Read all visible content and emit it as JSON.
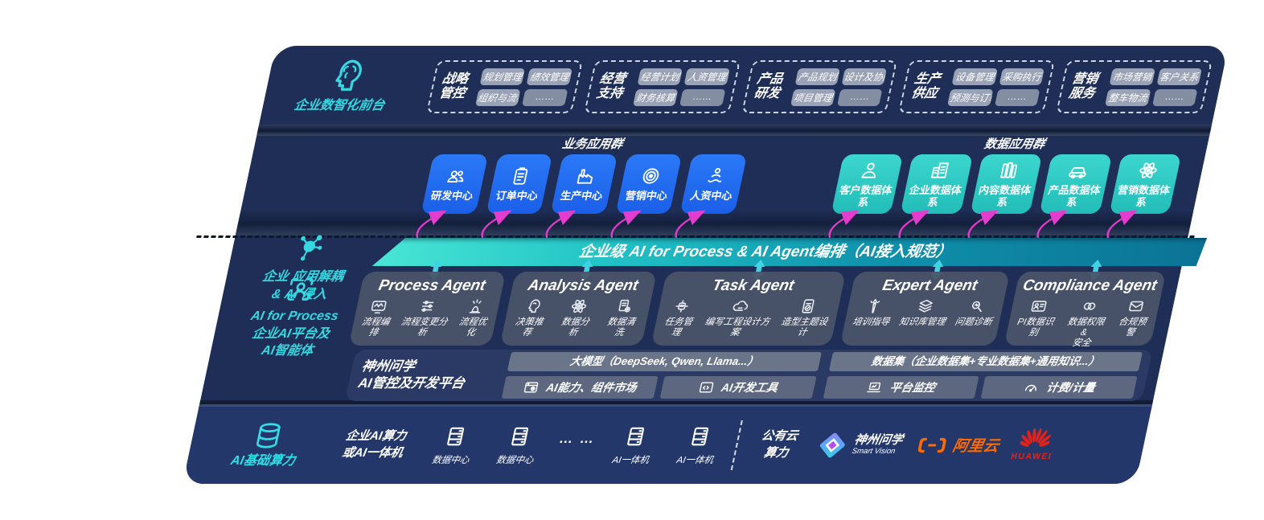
{
  "front": {
    "section_label": "企业数智化前台",
    "icon": "brain-head",
    "groups": [
      {
        "title": "战略管控",
        "items": [
          "规划管理",
          "绩效管理",
          "组织与流程",
          "……"
        ]
      },
      {
        "title": "经营支持",
        "items": [
          "经营计划",
          "人资管理",
          "财务核算",
          "……"
        ]
      },
      {
        "title": "产品研发",
        "items": [
          "产品规划",
          "设计及协同",
          "项目管理",
          "……"
        ]
      },
      {
        "title": "生产供应",
        "items": [
          "设备管理",
          "采购执行",
          "预测与订单",
          "……"
        ]
      },
      {
        "title": "营销服务",
        "items": [
          "市场营销",
          "客户关系",
          "整车物流",
          "……"
        ]
      }
    ]
  },
  "apps": {
    "section_label": "企业 应用解耦\n& AI 侵入",
    "icon": "molecule",
    "business_title": "业务应用群",
    "business": [
      {
        "label": "研发中心",
        "icon": "people"
      },
      {
        "label": "订单中心",
        "icon": "clipboard"
      },
      {
        "label": "生产中心",
        "icon": "factory"
      },
      {
        "label": "营销中心",
        "icon": "target"
      },
      {
        "label": "人资中心",
        "icon": "person-wave"
      }
    ],
    "data_title": "数据应用群",
    "data": [
      {
        "label": "客户数据体系",
        "icon": "person"
      },
      {
        "label": "企业数据体系",
        "icon": "building"
      },
      {
        "label": "内容数据体系",
        "icon": "books"
      },
      {
        "label": "产品数据体系",
        "icon": "car"
      },
      {
        "label": "营销数据体系",
        "icon": "atom"
      }
    ]
  },
  "band": {
    "title": "企业级 AI for Process & AI Agent编排（AI接入规范）"
  },
  "agents": {
    "section_label": "AI for Process\n企业AI平台及\nAI智能体",
    "icon": "scan-person",
    "cards": [
      {
        "title": "Process Agent",
        "items": [
          {
            "label": "流程编排",
            "icon": "monitor-wave"
          },
          {
            "label": "流程变更分析",
            "icon": "flow"
          },
          {
            "label": "流程优化",
            "icon": "spark"
          }
        ]
      },
      {
        "title": "Analysis Agent",
        "items": [
          {
            "label": "决策推荐",
            "icon": "head"
          },
          {
            "label": "数据分析",
            "icon": "atom"
          },
          {
            "label": "数据清洗",
            "icon": "doc-gear"
          }
        ]
      },
      {
        "title": "Task Agent",
        "items": [
          {
            "label": "任务管理",
            "icon": "robot"
          },
          {
            "label": "编写工程设计方案",
            "icon": "cloud"
          },
          {
            "label": "造型主题设计",
            "icon": "doc-check"
          }
        ]
      },
      {
        "title": "Expert Agent",
        "items": [
          {
            "label": "培训指导",
            "icon": "torch"
          },
          {
            "label": "知识库管理",
            "icon": "layers"
          },
          {
            "label": "问题诊断",
            "icon": "diagnose"
          }
        ]
      },
      {
        "title": "Compliance Agent",
        "items": [
          {
            "label": "PI数据识别",
            "icon": "idcard"
          },
          {
            "label": "数据权限 &\n安全",
            "icon": "circles"
          },
          {
            "label": "合规预警",
            "icon": "mail"
          }
        ]
      }
    ]
  },
  "platform": {
    "label": "神州问学\nAI管控及开发平台",
    "model_bar": "大模型（DeepSeek, Qwen, Llama...）",
    "dataset_bar": "数据集（企业数据集+专业数据集+通用知识...）",
    "cells": [
      {
        "label": "AI能力、组件市场",
        "icon": "window-gear"
      },
      {
        "label": "AI开发工具",
        "icon": "code-window"
      },
      {
        "label": "平台监控",
        "icon": "laptop"
      },
      {
        "label": "计费/计量",
        "icon": "gauge"
      }
    ]
  },
  "compute": {
    "section_label": "AI基础算力",
    "icon": "db",
    "onprem": "企业AI算力\n或AI一体机",
    "nodes": [
      {
        "label": "数据中心",
        "icon": "server"
      },
      {
        "label": "数据中心",
        "icon": "server"
      },
      {
        "label": "… …",
        "icon": ""
      },
      {
        "label": "AI一体机",
        "icon": "server"
      },
      {
        "label": "AI一体机",
        "icon": "server"
      }
    ],
    "cloud": "公有云\n算力",
    "logos": {
      "sv_name": "神州问学",
      "sv_sub": "Smart Vision",
      "ali_name": "阿里云",
      "huawei_name": "HUAWEI"
    }
  },
  "colors": {
    "accent_cyan": "#35d8e0",
    "teal": "#2fccc6",
    "blue": "#1e6cf0",
    "magenta": "#e53ccf",
    "ali_orange": "#ff6a00",
    "huawei_red": "#e2231a"
  }
}
